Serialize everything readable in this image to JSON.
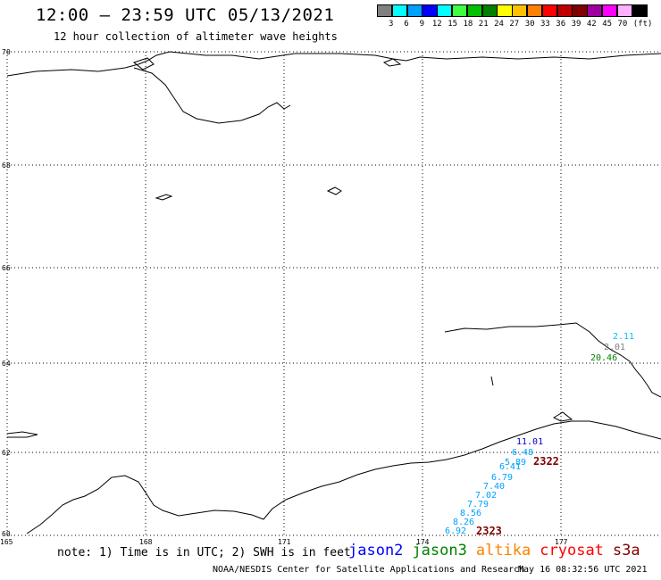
{
  "header": {
    "title": "12:00 – 23:59 UTC 05/13/2021",
    "subtitle": "12 hour collection of altimeter wave heights"
  },
  "colorbar": {
    "colors": [
      "#808080",
      "#00ffff",
      "#00a0ff",
      "#0000ff",
      "#00ffff",
      "#40ff40",
      "#00c000",
      "#008000",
      "#ffff00",
      "#ffc000",
      "#ff8000",
      "#ff0000",
      "#c00000",
      "#800000",
      "#a000a0",
      "#ff00ff",
      "#ffb0ff",
      "#000000"
    ],
    "labels": [
      "3",
      "6",
      "9",
      "12",
      "15",
      "18",
      "21",
      "24",
      "27",
      "30",
      "33",
      "36",
      "39",
      "42",
      "45",
      "70",
      "(ft)"
    ]
  },
  "map": {
    "lat_labels": [
      "70",
      "68",
      "66",
      "64",
      "62",
      "60"
    ],
    "lon_labels": [
      "165",
      "168",
      "171",
      "174",
      "177"
    ],
    "observations": [
      {
        "text": "2.11",
        "color": "#00c0ff"
      },
      {
        "text": "2.01",
        "color": "#808080"
      },
      {
        "text": "20.46",
        "color": "#008000"
      },
      {
        "text": "11.01",
        "color": "#0000c0"
      },
      {
        "text": "6.48",
        "color": "#00a0ff"
      },
      {
        "text": "5.89",
        "color": "#00a0ff"
      },
      {
        "text": "6.41",
        "color": "#00a0ff"
      },
      {
        "text": "6.79",
        "color": "#00a0ff"
      },
      {
        "text": "7.40",
        "color": "#00a0ff"
      },
      {
        "text": "7.02",
        "color": "#00a0ff"
      },
      {
        "text": "7.79",
        "color": "#00a0ff"
      },
      {
        "text": "8.56",
        "color": "#00a0ff"
      },
      {
        "text": "8.26",
        "color": "#00a0ff"
      },
      {
        "text": "6.92",
        "color": "#00a0ff"
      }
    ],
    "cycles": [
      {
        "text": "2322",
        "color": "#800000"
      },
      {
        "text": "2323",
        "color": "#800000"
      }
    ]
  },
  "footer": {
    "note": "note: 1) Time is in UTC; 2) SWH is in feet",
    "legend": [
      {
        "name": "jason2",
        "color": "#0000ff"
      },
      {
        "name": "jason3",
        "color": "#008000"
      },
      {
        "name": "altika",
        "color": "#ff8000"
      },
      {
        "name": "cryosat",
        "color": "#ff0000"
      },
      {
        "name": "s3a",
        "color": "#800000"
      }
    ],
    "credit": "NOAA/NESDIS Center for Satellite Applications and Research",
    "timestamp": "May 16 08:32:56 UTC 2021"
  }
}
